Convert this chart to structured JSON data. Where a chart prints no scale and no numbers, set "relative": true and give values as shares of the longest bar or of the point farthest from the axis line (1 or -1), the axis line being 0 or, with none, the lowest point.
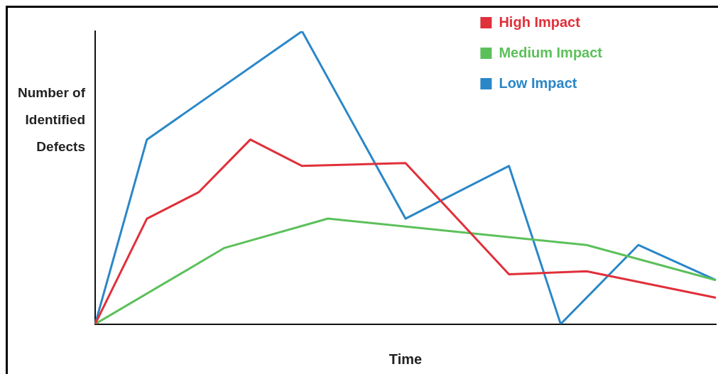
{
  "chart_data": {
    "type": "line",
    "relative": true,
    "xlabel": "Time",
    "ylabel": "Number of\nIdentified\nDefects",
    "categories": [
      null,
      null,
      null,
      null,
      null,
      null,
      null,
      null,
      null,
      null,
      null,
      null,
      null,
      null,
      null,
      null,
      null,
      null,
      null,
      null,
      null,
      null,
      null,
      null,
      null
    ],
    "grid": false,
    "legend": "top right",
    "marker": "none",
    "line_style": "solid",
    "series": [
      {
        "name": "High Impact",
        "color": "#e0303a",
        "values": [
          0,
          null,
          0.36,
          null,
          0.45,
          null,
          0.63,
          null,
          0.54,
          null,
          null,
          null,
          0.55,
          null,
          null,
          null,
          0.17,
          null,
          null,
          0.18,
          null,
          null,
          null,
          null,
          0.09
        ]
      },
      {
        "name": "Medium Impact",
        "color": "#5cc05a",
        "values": [
          0,
          null,
          null,
          null,
          null,
          0.26,
          null,
          null,
          null,
          0.36,
          null,
          null,
          null,
          null,
          null,
          null,
          null,
          null,
          null,
          0.27,
          null,
          null,
          null,
          null,
          0.15
        ]
      },
      {
        "name": "Low Impact",
        "color": "#2a87c8",
        "values": [
          0,
          null,
          0.63,
          null,
          null,
          null,
          null,
          null,
          1,
          null,
          null,
          null,
          0.36,
          null,
          null,
          null,
          0.54,
          null,
          0,
          null,
          null,
          0.27,
          null,
          null,
          0.15
        ]
      }
    ]
  }
}
